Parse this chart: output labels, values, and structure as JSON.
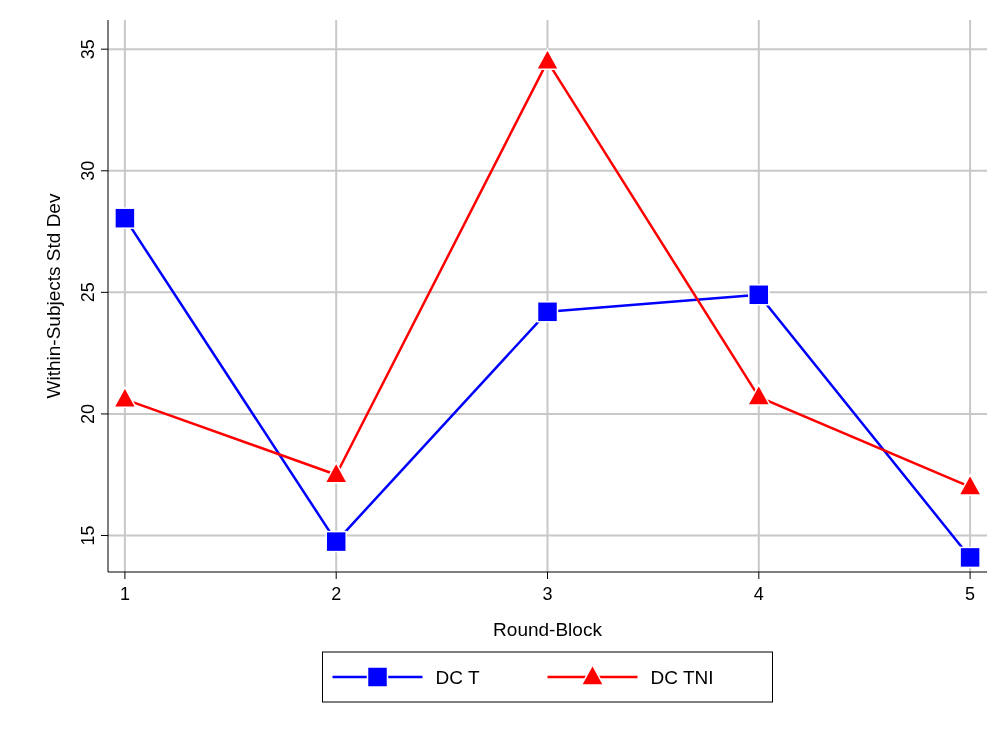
{
  "chart_data": {
    "type": "line",
    "xlabel": "Round-Block",
    "ylabel": "Within-Subjects Std Dev",
    "x": [
      1,
      2,
      3,
      4,
      5
    ],
    "series": [
      {
        "name": "DC T",
        "color": "#0000ff",
        "marker": "square",
        "values": [
          28.05,
          14.75,
          24.2,
          24.9,
          14.1
        ]
      },
      {
        "name": "DC TNI",
        "color": "#ff0000",
        "marker": "triangle",
        "values": [
          20.6,
          17.5,
          34.5,
          20.7,
          17.0
        ]
      }
    ],
    "xlim": [
      0.92,
      5.08
    ],
    "ylim": [
      13.5,
      36.2
    ],
    "xticks": [
      1,
      2,
      3,
      4,
      5
    ],
    "yticks": [
      15,
      20,
      25,
      30,
      35
    ],
    "grid": true,
    "legend": "bottom",
    "line_style": "solid"
  }
}
